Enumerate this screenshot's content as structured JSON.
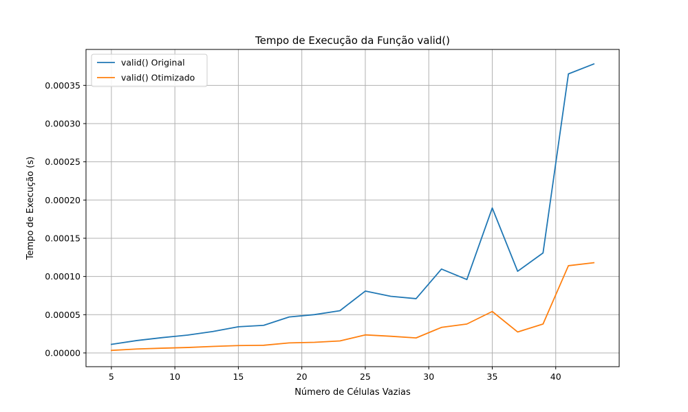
{
  "chart_data": {
    "type": "line",
    "title": "Tempo de Execução da Função valid()",
    "xlabel": "Número de Células Vazias",
    "ylabel": "Tempo de Execução (s)",
    "xlim": [
      3,
      45
    ],
    "ylim": [
      -1.8e-05,
      0.000397
    ],
    "x_ticks": [
      5,
      10,
      15,
      20,
      25,
      30,
      35,
      40
    ],
    "y_ticks": [
      0,
      5e-05,
      0.0001,
      0.00015,
      0.0002,
      0.00025,
      0.0003,
      0.00035
    ],
    "x_tick_labels": [
      "5",
      "10",
      "15",
      "20",
      "25",
      "30",
      "35",
      "40"
    ],
    "y_tick_labels": [
      "0.00000",
      "0.00005",
      "0.00010",
      "0.00015",
      "0.00020",
      "0.00025",
      "0.00030",
      "0.00035"
    ],
    "grid": true,
    "legend_position": "top-left",
    "x": [
      5,
      7,
      9,
      11,
      13,
      15,
      17,
      19,
      21,
      23,
      25,
      27,
      29,
      31,
      33,
      35,
      37,
      39,
      41,
      43
    ],
    "series": [
      {
        "name": "valid() Original",
        "color": "#1f77b4",
        "values": [
          1.12e-05,
          1.62e-05,
          2e-05,
          2.33e-05,
          2.8e-05,
          3.42e-05,
          3.61e-05,
          4.7e-05,
          5.01e-05,
          5.52e-05,
          8.09e-05,
          7.41e-05,
          7.1e-05,
          0.0001097,
          9.6e-05,
          0.0001896,
          0.0001068,
          0.0001308,
          0.000365,
          0.000378
        ]
      },
      {
        "name": "valid() Otimizado",
        "color": "#ff7f0e",
        "values": [
          3.3e-06,
          5.1e-06,
          6.2e-06,
          7.1e-06,
          8.5e-06,
          9.6e-06,
          1e-05,
          1.31e-05,
          1.39e-05,
          1.57e-05,
          2.36e-05,
          2.18e-05,
          1.96e-05,
          3.34e-05,
          3.78e-05,
          5.42e-05,
          2.74e-05,
          3.78e-05,
          0.0001141,
          0.000118
        ]
      }
    ]
  }
}
